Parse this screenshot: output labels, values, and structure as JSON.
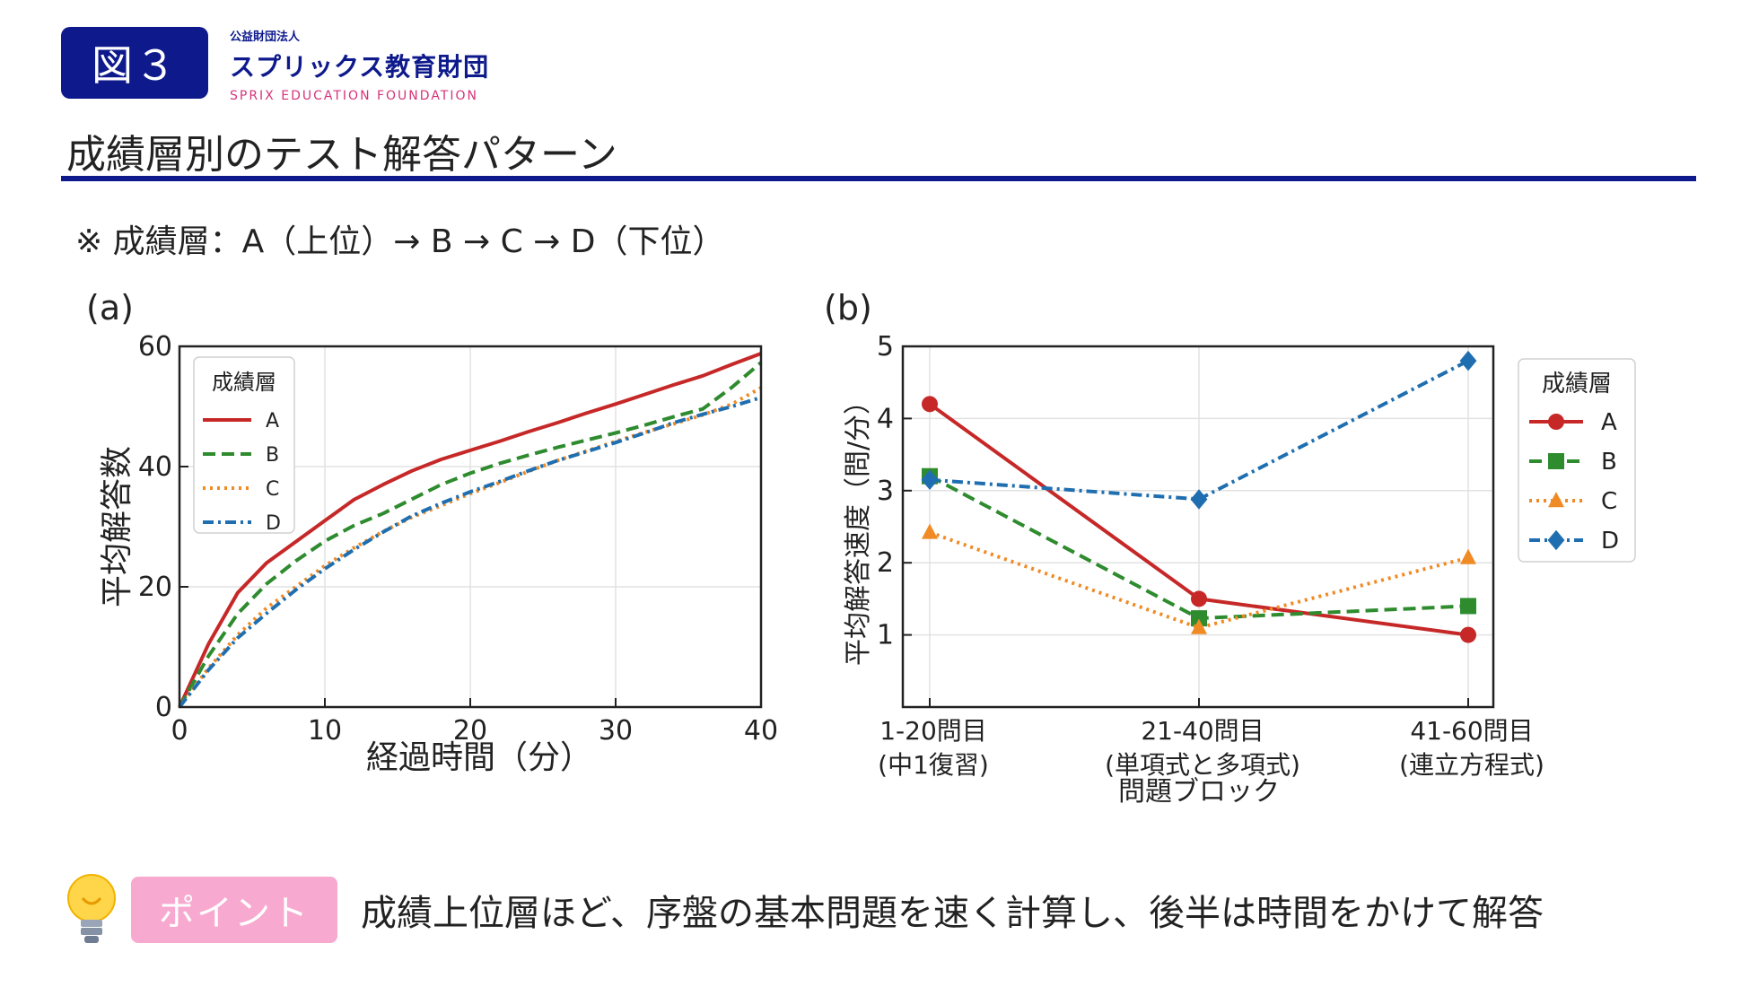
{
  "header": {
    "figure_label": "図３",
    "org_small": "公益財団法人",
    "org_name": "スプリックス教育財団",
    "org_en": "SPRIX EDUCATION FOUNDATION",
    "title": "成績層別のテスト解答パターン"
  },
  "note": "※ 成績層：A（上位）→ B → C → D（下位）",
  "colors": {
    "A": "#c62828",
    "B": "#2e8b2e",
    "C": "#f08a24",
    "D": "#1f6fb0",
    "navy": "#0e1a8c",
    "pink": "#f7a9d0"
  },
  "footer": {
    "point_label": "ポイント",
    "point_text": "成績上位層ほど、序盤の基本問題を速く計算し、後半は時間をかけて解答"
  },
  "chart_data": [
    {
      "panel_label": "(a)",
      "type": "line",
      "xlabel": "経過時間（分）",
      "ylabel": "平均解答数",
      "xlim": [
        0,
        40
      ],
      "ylim": [
        0,
        60
      ],
      "xticks": [
        0,
        10,
        20,
        30,
        40
      ],
      "yticks": [
        0,
        20,
        40,
        60
      ],
      "grid": true,
      "legend": {
        "title": "成績層",
        "position": "top-left"
      },
      "x": [
        0,
        2,
        4,
        6,
        8,
        10,
        12,
        14,
        16,
        18,
        20,
        22,
        24,
        26,
        28,
        30,
        32,
        34,
        36,
        38,
        40
      ],
      "series": [
        {
          "name": "A",
          "style": "solid",
          "values": [
            0,
            10.5,
            19,
            24,
            27.5,
            31,
            34.5,
            37,
            39.3,
            41.2,
            42.7,
            44.2,
            45.8,
            47.3,
            48.9,
            50.4,
            52,
            53.6,
            55.1,
            57,
            58.8
          ]
        },
        {
          "name": "B",
          "style": "dashed",
          "values": [
            0,
            8.5,
            15.5,
            20.5,
            24.3,
            27.6,
            30.2,
            32.2,
            34.6,
            37,
            38.9,
            40.5,
            41.9,
            43.2,
            44.4,
            45.6,
            46.9,
            48.3,
            49.6,
            53.2,
            57.3
          ]
        },
        {
          "name": "C",
          "style": "dotted",
          "values": [
            0,
            6.5,
            12,
            16.5,
            20,
            23.5,
            26.5,
            29.2,
            31.6,
            33.5,
            35.5,
            37.3,
            39.2,
            41,
            42.6,
            44.2,
            45.7,
            47.1,
            48.6,
            50.4,
            53.1
          ]
        },
        {
          "name": "D",
          "style": "dashdot",
          "values": [
            0,
            6.2,
            11.5,
            15.6,
            19.5,
            23,
            26.2,
            29.1,
            31.8,
            33.9,
            35.8,
            37.5,
            39.3,
            41,
            42.5,
            44,
            45.6,
            47.3,
            48.7,
            50,
            51.5
          ]
        }
      ]
    },
    {
      "panel_label": "(b)",
      "type": "line",
      "xlabel": "問題ブロック",
      "ylabel": "平均解答速度（問/分）",
      "ylim": [
        0,
        5
      ],
      "yticks": [
        1,
        2,
        3,
        4,
        5
      ],
      "grid": true,
      "legend": {
        "title": "成績層",
        "position": "outside-right"
      },
      "categories": [
        [
          "1-20問目",
          "(中1復習)"
        ],
        [
          "21-40問目",
          "(単項式と多項式)"
        ],
        [
          "41-60問目",
          "(連立方程式)"
        ]
      ],
      "series": [
        {
          "name": "A",
          "marker": "circle",
          "style": "solid",
          "values": [
            4.2,
            1.5,
            1.0
          ]
        },
        {
          "name": "B",
          "marker": "square",
          "style": "dashed",
          "values": [
            3.2,
            1.23,
            1.4
          ]
        },
        {
          "name": "C",
          "marker": "triangle",
          "style": "dotted",
          "values": [
            2.42,
            1.1,
            2.07
          ]
        },
        {
          "name": "D",
          "marker": "diamond",
          "style": "dashdot",
          "values": [
            3.15,
            2.88,
            4.8
          ]
        }
      ]
    }
  ]
}
